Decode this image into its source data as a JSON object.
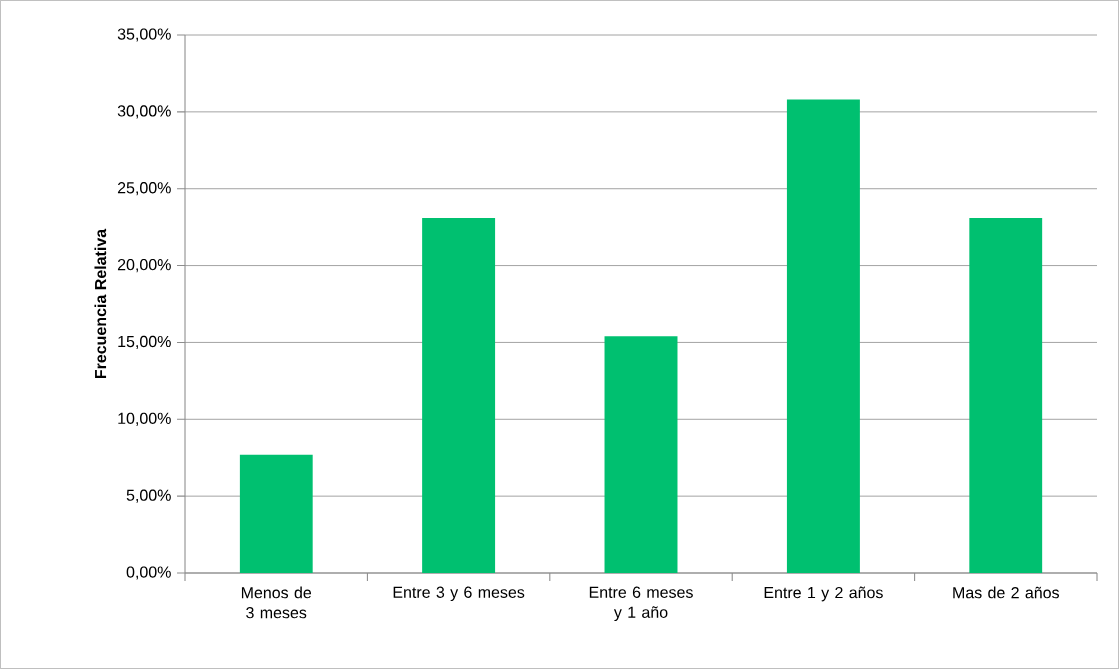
{
  "chart_data": {
    "type": "bar",
    "ylabel": "Frecuencia Relativa",
    "categories": [
      "Menos de 3 meses",
      "Entre 3 y 6 meses",
      "Entre 6 meses y 1 año",
      "Entre 1 y 2 años",
      "Mas de 2 años"
    ],
    "values": [
      7.7,
      23.1,
      15.4,
      30.8,
      23.1
    ],
    "color": "#00c070",
    "ylim": [
      0,
      35
    ],
    "yticks": [
      {
        "value": 0,
        "label": "0,00%"
      },
      {
        "value": 5,
        "label": "5,00%"
      },
      {
        "value": 10,
        "label": "10,00%"
      },
      {
        "value": 15,
        "label": "15,00%"
      },
      {
        "value": 20,
        "label": "20,00%"
      },
      {
        "value": 25,
        "label": "25,00%"
      },
      {
        "value": 30,
        "label": "30,00%"
      },
      {
        "value": 35,
        "label": "35,00%"
      }
    ],
    "grid": "y"
  }
}
